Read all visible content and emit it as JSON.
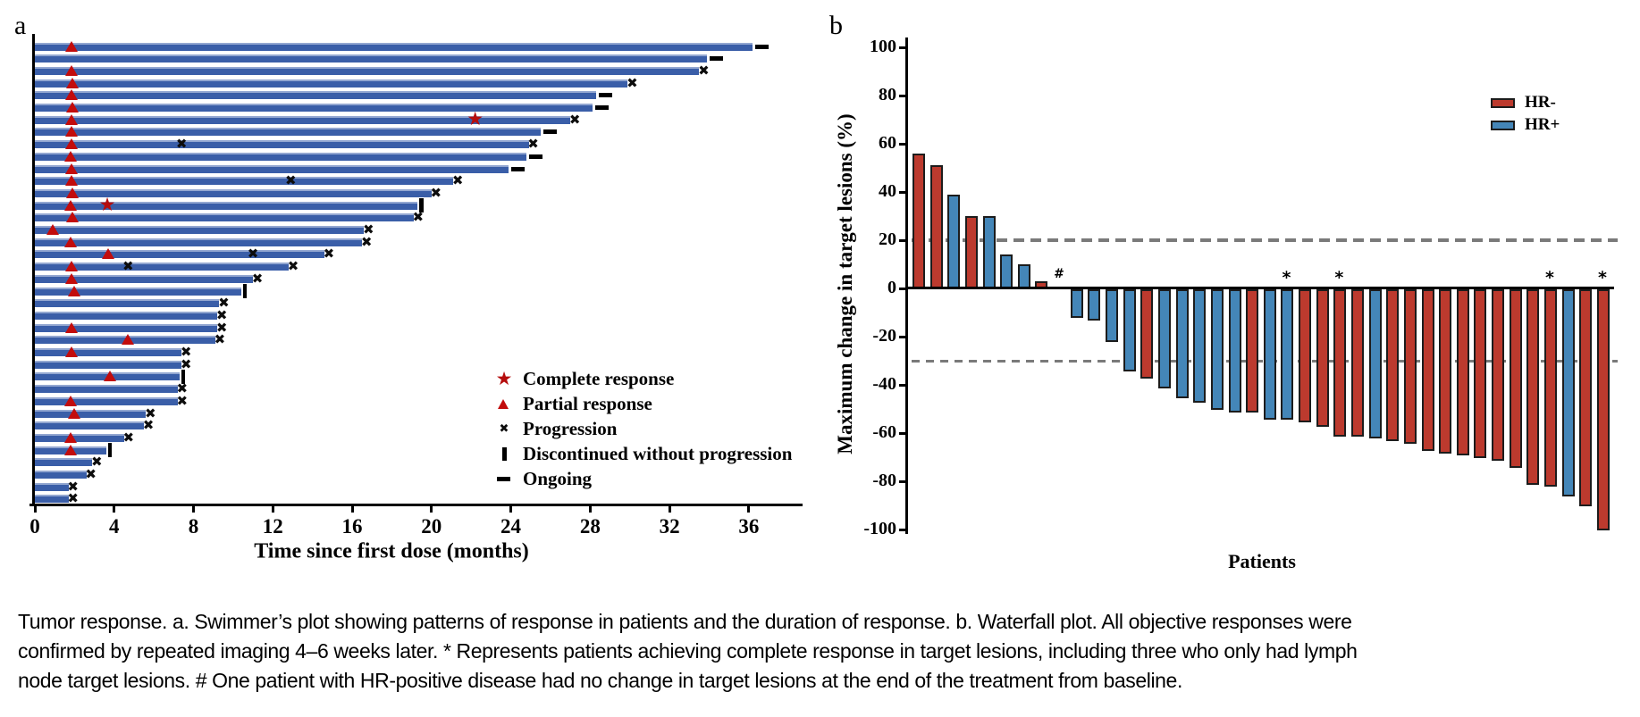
{
  "colors": {
    "swimmer_bar": "#3a5ea8",
    "swimmer_bar_top": "#93a7d1",
    "marker_red": "#c20c0c",
    "star_red": "#b50d0d",
    "waterfall_red": "#bc3a2e",
    "waterfall_blue": "#4486b8",
    "bar_outline": "#1c1c1c",
    "dashed_line": "#7a7a7a",
    "axis": "#000000"
  },
  "caption": {
    "line1": "Tumor response. a. Swimmer’s plot showing patterns of response in patients and the duration of response. b. Waterfall plot. All objective responses were",
    "line2": "confirmed by repeated imaging 4–6 weeks later. * Represents patients achieving complete response in target lesions, including three who only had lymph",
    "line3": "node target lesions. # One patient with HR-positive disease had no change in target lesions at the end of the treatment from baseline."
  },
  "chart_data": [
    {
      "id": "swimmer",
      "type": "bar",
      "panel_label": "a",
      "xlabel": "Time since first dose (months)",
      "xlim": [
        0,
        38.5
      ],
      "x_ticks": [
        0,
        4,
        8,
        12,
        16,
        20,
        24,
        28,
        32,
        36
      ],
      "legend": [
        {
          "symbol": "star",
          "label": "Complete response"
        },
        {
          "symbol": "triangle",
          "label": "Partial response"
        },
        {
          "symbol": "cross",
          "label": "Progression"
        },
        {
          "symbol": "pipe",
          "label": "Discontinued without progression"
        },
        {
          "symbol": "dash",
          "label": "Ongoing"
        }
      ],
      "bars": [
        {
          "duration": 36.2,
          "end": "ongoing",
          "partial_response_at": 1.85
        },
        {
          "duration": 33.9,
          "end": "ongoing"
        },
        {
          "duration": 33.5,
          "end": "progression",
          "partial_response_at": 1.85
        },
        {
          "duration": 29.9,
          "end": "progression",
          "partial_response_at": 1.9
        },
        {
          "duration": 28.3,
          "end": "ongoing",
          "partial_response_at": 1.85
        },
        {
          "duration": 28.1,
          "end": "ongoing",
          "partial_response_at": 1.9
        },
        {
          "duration": 27.0,
          "end": "progression",
          "partial_response_at": 1.85,
          "complete_response_at": 22.2
        },
        {
          "duration": 25.5,
          "end": "ongoing",
          "partial_response_at": 1.85
        },
        {
          "duration": 24.9,
          "end": "progression",
          "partial_response_at": 1.85,
          "progression_events": [
            7.4
          ]
        },
        {
          "duration": 24.8,
          "end": "ongoing",
          "partial_response_at": 1.8
        },
        {
          "duration": 23.9,
          "end": "ongoing",
          "partial_response_at": 1.85
        },
        {
          "duration": 21.1,
          "end": "progression",
          "partial_response_at": 1.85,
          "progression_events": [
            12.9
          ]
        },
        {
          "duration": 20.0,
          "end": "progression",
          "partial_response_at": 1.9
        },
        {
          "duration": 19.3,
          "end": "discontinued",
          "partial_response_at": 1.8,
          "complete_response_at": 3.65
        },
        {
          "duration": 19.1,
          "end": "progression",
          "partial_response_at": 1.9
        },
        {
          "duration": 16.6,
          "end": "progression",
          "partial_response_at": 0.9
        },
        {
          "duration": 16.5,
          "end": "progression",
          "partial_response_at": 1.8
        },
        {
          "duration": 14.6,
          "end": "progression",
          "partial_response_at": 3.7,
          "progression_events": [
            11.0
          ]
        },
        {
          "duration": 12.8,
          "end": "progression",
          "partial_response_at": 1.85,
          "progression_events": [
            4.7
          ]
        },
        {
          "duration": 11.0,
          "end": "progression",
          "partial_response_at": 1.85
        },
        {
          "duration": 10.4,
          "end": "discontinued",
          "partial_response_at": 2.0
        },
        {
          "duration": 9.3,
          "end": "progression"
        },
        {
          "duration": 9.2,
          "end": "progression"
        },
        {
          "duration": 9.2,
          "end": "progression",
          "partial_response_at": 1.85
        },
        {
          "duration": 9.1,
          "end": "progression",
          "partial_response_at": 4.7
        },
        {
          "duration": 7.4,
          "end": "progression",
          "partial_response_at": 1.85
        },
        {
          "duration": 7.4,
          "end": "progression"
        },
        {
          "duration": 7.3,
          "end": "discontinued",
          "partial_response_at": 3.8
        },
        {
          "duration": 7.2,
          "end": "progression"
        },
        {
          "duration": 7.2,
          "end": "progression",
          "partial_response_at": 1.8
        },
        {
          "duration": 5.6,
          "end": "progression",
          "partial_response_at": 2.0
        },
        {
          "duration": 5.5,
          "end": "progression"
        },
        {
          "duration": 4.5,
          "end": "progression",
          "partial_response_at": 1.8
        },
        {
          "duration": 3.6,
          "end": "discontinued",
          "partial_response_at": 1.8
        },
        {
          "duration": 2.9,
          "end": "progression"
        },
        {
          "duration": 2.6,
          "end": "progression"
        },
        {
          "duration": 1.7,
          "end": "progression"
        },
        {
          "duration": 1.7,
          "end": "progression"
        }
      ]
    },
    {
      "id": "waterfall",
      "type": "bar",
      "panel_label": "b",
      "ylabel": "Maximum change in target lesions (%)",
      "xlabel": "Patients",
      "ylim": [
        -100,
        100
      ],
      "y_ticks": [
        100,
        80,
        60,
        40,
        20,
        0,
        -20,
        -40,
        -60,
        -80,
        -100
      ],
      "reference_lines": [
        20,
        -30
      ],
      "legend": [
        {
          "label": "HR-",
          "color_key": "waterfall_red"
        },
        {
          "label": "HR+",
          "color_key": "waterfall_blue"
        }
      ],
      "patients": [
        {
          "value": 56,
          "group": "HR-"
        },
        {
          "value": 51,
          "group": "HR-"
        },
        {
          "value": 39,
          "group": "HR+"
        },
        {
          "value": 30,
          "group": "HR-"
        },
        {
          "value": 30,
          "group": "HR+"
        },
        {
          "value": 14,
          "group": "HR+"
        },
        {
          "value": 10,
          "group": "HR+"
        },
        {
          "value": 3,
          "group": "HR-"
        },
        {
          "value": 0,
          "group": "HR+",
          "marker": "#"
        },
        {
          "value": -12,
          "group": "HR+"
        },
        {
          "value": -13,
          "group": "HR+"
        },
        {
          "value": -22,
          "group": "HR+"
        },
        {
          "value": -34,
          "group": "HR+"
        },
        {
          "value": -37,
          "group": "HR-"
        },
        {
          "value": -41,
          "group": "HR+"
        },
        {
          "value": -45,
          "group": "HR+"
        },
        {
          "value": -47,
          "group": "HR+"
        },
        {
          "value": -50,
          "group": "HR+"
        },
        {
          "value": -51,
          "group": "HR+"
        },
        {
          "value": -51,
          "group": "HR-"
        },
        {
          "value": -54,
          "group": "HR+"
        },
        {
          "value": -54,
          "group": "HR+",
          "marker": "*"
        },
        {
          "value": -55,
          "group": "HR-"
        },
        {
          "value": -57,
          "group": "HR-"
        },
        {
          "value": -61,
          "group": "HR-",
          "marker": "*"
        },
        {
          "value": -61,
          "group": "HR-"
        },
        {
          "value": -62,
          "group": "HR+"
        },
        {
          "value": -63,
          "group": "HR-"
        },
        {
          "value": -64,
          "group": "HR-"
        },
        {
          "value": -67,
          "group": "HR-"
        },
        {
          "value": -68,
          "group": "HR-"
        },
        {
          "value": -69,
          "group": "HR-"
        },
        {
          "value": -70,
          "group": "HR-"
        },
        {
          "value": -71,
          "group": "HR-"
        },
        {
          "value": -74,
          "group": "HR-"
        },
        {
          "value": -81,
          "group": "HR-"
        },
        {
          "value": -82,
          "group": "HR-",
          "marker": "*"
        },
        {
          "value": -86,
          "group": "HR+"
        },
        {
          "value": -90,
          "group": "HR-"
        },
        {
          "value": -100,
          "group": "HR-",
          "marker": "*"
        }
      ]
    }
  ]
}
